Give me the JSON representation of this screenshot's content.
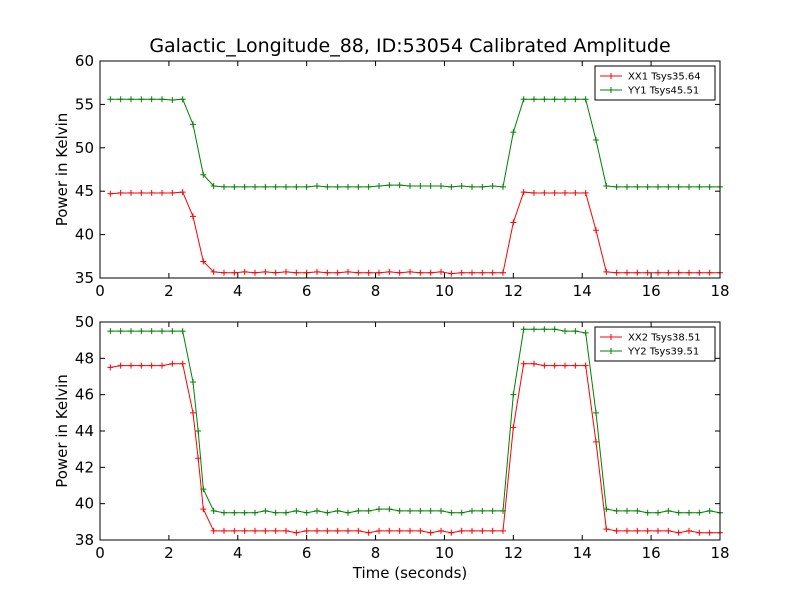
{
  "title": "Galactic_Longitude_88, ID:53054 Calibrated Amplitude",
  "xlabel": "Time (seconds)",
  "colors": {
    "xx": "#ff0000",
    "yy": "#008000"
  },
  "chart_data": [
    {
      "type": "line",
      "ylabel": "Power in Kelvin",
      "xlim": [
        0,
        18
      ],
      "ylim": [
        35,
        60
      ],
      "xticks": [
        0,
        2,
        4,
        6,
        8,
        10,
        12,
        14,
        16,
        18
      ],
      "yticks": [
        35,
        40,
        45,
        50,
        55,
        60
      ],
      "legend_position": "top-right",
      "x": [
        0.3,
        0.6,
        0.9,
        1.2,
        1.5,
        1.8,
        2.1,
        2.4,
        2.7,
        3.0,
        3.3,
        3.6,
        3.9,
        4.2,
        4.5,
        4.8,
        5.1,
        5.4,
        5.7,
        6.0,
        6.3,
        6.6,
        6.9,
        7.2,
        7.5,
        7.8,
        8.1,
        8.4,
        8.7,
        9.0,
        9.3,
        9.6,
        9.9,
        10.2,
        10.5,
        10.8,
        11.1,
        11.4,
        11.7,
        12.0,
        12.3,
        12.6,
        12.9,
        13.2,
        13.5,
        13.8,
        14.1,
        14.4,
        14.7,
        15.0,
        15.3,
        15.6,
        15.9,
        16.2,
        16.5,
        16.8,
        17.1,
        17.4,
        17.7,
        18.0
      ],
      "series": [
        {
          "name": "XX1 Tsys35.64",
          "color": "#ff0000",
          "values": [
            44.7,
            44.8,
            44.8,
            44.8,
            44.8,
            44.8,
            44.8,
            44.9,
            42.1,
            36.9,
            35.7,
            35.6,
            35.6,
            35.7,
            35.6,
            35.7,
            35.6,
            35.7,
            35.6,
            35.6,
            35.7,
            35.6,
            35.6,
            35.7,
            35.6,
            35.6,
            35.6,
            35.7,
            35.6,
            35.7,
            35.6,
            35.6,
            35.7,
            35.5,
            35.6,
            35.6,
            35.6,
            35.6,
            35.6,
            41.4,
            44.9,
            44.8,
            44.8,
            44.8,
            44.8,
            44.8,
            44.8,
            40.5,
            35.7,
            35.6,
            35.6,
            35.6,
            35.6,
            35.6,
            35.6,
            35.6,
            35.6,
            35.6,
            35.6,
            35.6
          ]
        },
        {
          "name": "YY1 Tsys45.51",
          "color": "#008000",
          "values": [
            55.6,
            55.6,
            55.6,
            55.6,
            55.6,
            55.6,
            55.5,
            55.6,
            52.7,
            46.9,
            45.6,
            45.5,
            45.5,
            45.5,
            45.5,
            45.5,
            45.5,
            45.5,
            45.5,
            45.5,
            45.6,
            45.5,
            45.5,
            45.5,
            45.5,
            45.5,
            45.6,
            45.7,
            45.7,
            45.6,
            45.6,
            45.6,
            45.6,
            45.5,
            45.6,
            45.5,
            45.5,
            45.6,
            45.5,
            51.8,
            55.6,
            55.6,
            55.6,
            55.6,
            55.6,
            55.6,
            55.6,
            50.9,
            45.6,
            45.5,
            45.5,
            45.5,
            45.5,
            45.5,
            45.5,
            45.5,
            45.5,
            45.5,
            45.5,
            45.5
          ]
        }
      ]
    },
    {
      "type": "line",
      "ylabel": "Power in Kelvin",
      "xlim": [
        0,
        18
      ],
      "ylim": [
        38,
        50
      ],
      "xticks": [
        0,
        2,
        4,
        6,
        8,
        10,
        12,
        14,
        16,
        18
      ],
      "yticks": [
        38,
        40,
        42,
        44,
        46,
        48,
        50
      ],
      "legend_position": "top-right",
      "x": [
        0.3,
        0.6,
        0.9,
        1.2,
        1.5,
        1.8,
        2.1,
        2.4,
        2.7,
        2.85,
        3.0,
        3.3,
        3.6,
        3.9,
        4.2,
        4.5,
        4.8,
        5.1,
        5.4,
        5.7,
        6.0,
        6.3,
        6.6,
        6.9,
        7.2,
        7.5,
        7.8,
        8.1,
        8.4,
        8.7,
        9.0,
        9.3,
        9.6,
        9.9,
        10.2,
        10.5,
        10.8,
        11.1,
        11.4,
        11.7,
        12.0,
        12.3,
        12.6,
        12.9,
        13.2,
        13.5,
        13.8,
        14.1,
        14.4,
        14.7,
        15.0,
        15.3,
        15.6,
        15.9,
        16.2,
        16.5,
        16.8,
        17.1,
        17.4,
        17.7,
        18.0
      ],
      "series": [
        {
          "name": "XX2 Tsys38.51",
          "color": "#ff0000",
          "values": [
            47.5,
            47.6,
            47.6,
            47.6,
            47.6,
            47.6,
            47.7,
            47.7,
            45.0,
            42.5,
            39.7,
            38.5,
            38.5,
            38.5,
            38.5,
            38.5,
            38.5,
            38.5,
            38.5,
            38.4,
            38.5,
            38.5,
            38.5,
            38.5,
            38.5,
            38.5,
            38.4,
            38.5,
            38.5,
            38.5,
            38.5,
            38.5,
            38.4,
            38.5,
            38.4,
            38.5,
            38.5,
            38.5,
            38.5,
            38.5,
            44.2,
            47.7,
            47.7,
            47.6,
            47.6,
            47.6,
            47.6,
            47.6,
            43.4,
            38.6,
            38.5,
            38.5,
            38.5,
            38.5,
            38.5,
            38.5,
            38.4,
            38.5,
            38.4,
            38.4,
            38.4
          ]
        },
        {
          "name": "YY2 Tsys39.51",
          "color": "#008000",
          "values": [
            49.5,
            49.5,
            49.5,
            49.5,
            49.5,
            49.5,
            49.5,
            49.5,
            46.7,
            44.0,
            40.8,
            39.6,
            39.5,
            39.5,
            39.5,
            39.5,
            39.6,
            39.5,
            39.5,
            39.6,
            39.5,
            39.6,
            39.5,
            39.6,
            39.5,
            39.6,
            39.6,
            39.7,
            39.7,
            39.6,
            39.6,
            39.6,
            39.6,
            39.6,
            39.5,
            39.5,
            39.6,
            39.6,
            39.6,
            39.6,
            46.0,
            49.6,
            49.6,
            49.6,
            49.6,
            49.5,
            49.5,
            49.4,
            45.0,
            39.7,
            39.6,
            39.6,
            39.6,
            39.5,
            39.5,
            39.6,
            39.5,
            39.5,
            39.5,
            39.6,
            39.5
          ]
        }
      ]
    }
  ]
}
